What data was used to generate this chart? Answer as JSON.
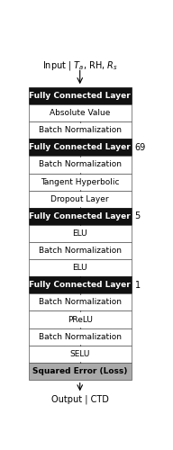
{
  "title_text": "Input | $T_a$, RH, $R_s$",
  "output_text": "Output | CTD",
  "layers": [
    {
      "label": "Fully Connected Layer",
      "style": "black",
      "number": null
    },
    {
      "label": "Absolute Value",
      "style": "white",
      "number": null
    },
    {
      "label": "Batch Normalization",
      "style": "white",
      "number": null
    },
    {
      "label": "Fully Connected Layer",
      "style": "black",
      "number": "69"
    },
    {
      "label": "Batch Normalization",
      "style": "white",
      "number": null
    },
    {
      "label": "Tangent Hyperbolic",
      "style": "white",
      "number": null
    },
    {
      "label": "Dropout Layer",
      "style": "white",
      "number": null
    },
    {
      "label": "Fully Connected Layer",
      "style": "black",
      "number": "5"
    },
    {
      "label": "ELU",
      "style": "white",
      "number": null
    },
    {
      "label": "Batch Normalization",
      "style": "white",
      "number": null
    },
    {
      "label": "ELU",
      "style": "white",
      "number": null
    },
    {
      "label": "Fully Connected Layer",
      "style": "black",
      "number": "1"
    },
    {
      "label": "Batch Normalization",
      "style": "white",
      "number": null
    },
    {
      "label": "PReLU",
      "style": "white",
      "number": null
    },
    {
      "label": "Batch Normalization",
      "style": "white",
      "number": null
    },
    {
      "label": "SELU",
      "style": "white",
      "number": null
    },
    {
      "label": "Squared Error (Loss)",
      "style": "gray",
      "number": null
    }
  ],
  "fig_width": 1.92,
  "fig_height": 5.0,
  "dpi": 100,
  "black_color": "#111111",
  "gray_color": "#aaaaaa",
  "white_color": "#ffffff",
  "border_color": "#555555",
  "title_fontsize": 7.0,
  "layer_fontsize": 6.5,
  "number_fontsize": 7.0
}
